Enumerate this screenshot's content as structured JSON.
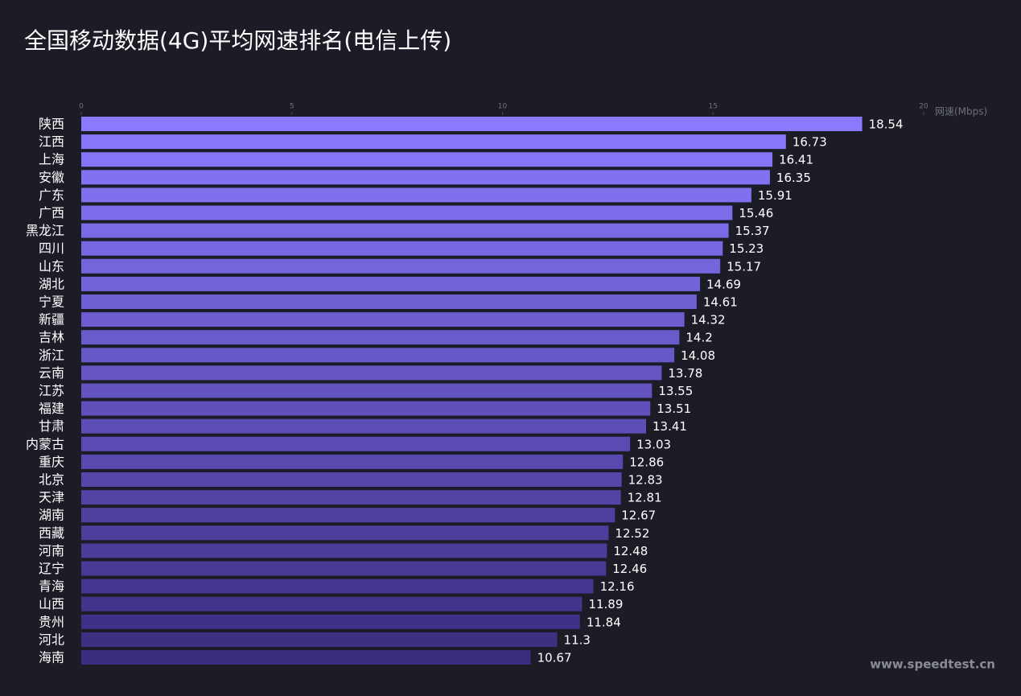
{
  "chart_data": {
    "type": "bar",
    "orientation": "horizontal",
    "title": "全国移动数据(4G)平均网速排名(电信上传)",
    "x_label": "网速(Mbps)",
    "watermark": "www.speedtest.cn",
    "categories": [
      "陕西",
      "江西",
      "上海",
      "安徽",
      "广东",
      "广西",
      "黑龙江",
      "四川",
      "山东",
      "湖北",
      "宁夏",
      "新疆",
      "吉林",
      "浙江",
      "云南",
      "江苏",
      "福建",
      "甘肃",
      "内蒙古",
      "重庆",
      "北京",
      "天津",
      "湖南",
      "西藏",
      "河南",
      "辽宁",
      "青海",
      "山西",
      "贵州",
      "河北",
      "海南"
    ],
    "values": [
      18.54,
      16.73,
      16.41,
      16.35,
      15.91,
      15.46,
      15.37,
      15.23,
      15.17,
      14.69,
      14.61,
      14.32,
      14.2,
      14.08,
      13.78,
      13.55,
      13.51,
      13.41,
      13.03,
      12.86,
      12.83,
      12.81,
      12.67,
      12.52,
      12.48,
      12.46,
      12.16,
      11.89,
      11.84,
      11.3,
      10.67
    ],
    "color_range": [
      "#8a7aff",
      "#3a2c7e"
    ],
    "xlim": [
      0,
      20
    ],
    "xticks": [
      0,
      5,
      10,
      15,
      20
    ],
    "grid": false
  }
}
